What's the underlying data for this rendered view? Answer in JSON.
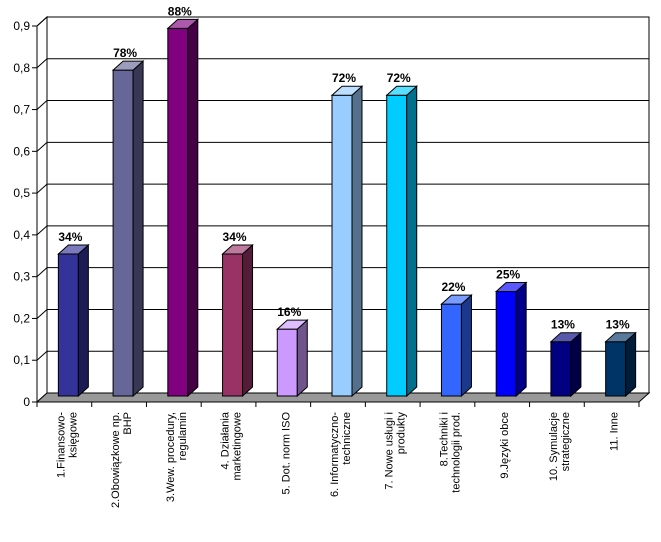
{
  "chart_data": {
    "type": "bar",
    "title": "",
    "xlabel": "",
    "ylabel": "",
    "ylim": [
      0,
      0.9
    ],
    "yticks": [
      "0",
      "0,1",
      "0,2",
      "0,3",
      "0,4",
      "0,5",
      "0,6",
      "0,7",
      "0,8",
      "0,9"
    ],
    "grid": true,
    "legend": "none",
    "style": "3d",
    "categories": [
      [
        "1.Finansowo-",
        "księgowe"
      ],
      [
        "2.Obowiązkowe np.",
        "BHP"
      ],
      [
        "3.Wew. procedury,",
        "regulamin"
      ],
      [
        "4. Działania",
        "marketingowe"
      ],
      [
        "5. Dot. norm ISO"
      ],
      [
        "6. Informatyczno-",
        "techniczne"
      ],
      [
        "7. Nowe usługi i",
        "produkty"
      ],
      [
        "8.Techniki i",
        "technologii prod."
      ],
      [
        "9.Języki obce"
      ],
      [
        "10. Symulacje",
        "strategiczne"
      ],
      [
        "11. Inne"
      ]
    ],
    "values": [
      0.34,
      0.78,
      0.88,
      0.34,
      0.16,
      0.72,
      0.72,
      0.22,
      0.25,
      0.13,
      0.13
    ],
    "data_labels": [
      "34%",
      "78%",
      "88%",
      "34%",
      "16%",
      "72%",
      "72%",
      "22%",
      "25%",
      "13%",
      "13%"
    ],
    "colors": [
      "#333399",
      "#666699",
      "#800080",
      "#993366",
      "#CC99FF",
      "#99CCFF",
      "#00CCFF",
      "#3366FF",
      "#0000FF",
      "#000080",
      "#003366"
    ],
    "wall_color": "#ffffff",
    "floor_color": "#999999",
    "gridline_color": "#000000"
  }
}
